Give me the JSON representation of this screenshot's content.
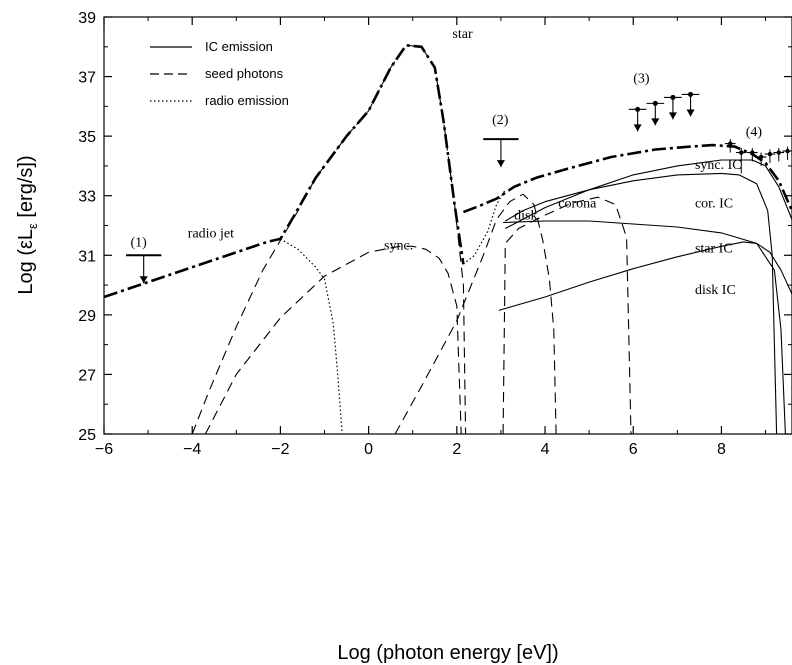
{
  "chart_data": {
    "type": "line",
    "title": "",
    "xlabel": "Log (photon energy [eV])",
    "ylabel": "Log (εL",
    "ylabel_sub": "ε",
    "ylabel_unit": " [erg/s])",
    "xlim": [
      -6,
      9.6
    ],
    "ylim": [
      25,
      39
    ],
    "x_ticks": [
      -6,
      -4,
      -2,
      0,
      2,
      4,
      6,
      8
    ],
    "y_ticks": [
      25,
      27,
      29,
      31,
      33,
      35,
      37,
      39
    ],
    "grid": false,
    "legend": {
      "placement": "top-left",
      "entries": [
        {
          "label": "IC emission",
          "style": "solid"
        },
        {
          "label": "seed photons",
          "style": "dashed"
        },
        {
          "label": "radio emission",
          "style": "dotted"
        }
      ]
    },
    "annotations": [
      {
        "text": "star",
        "x": 1.9,
        "y": 38.3
      },
      {
        "text": "radio jet",
        "x": -4.1,
        "y": 31.6
      },
      {
        "text": "sync.",
        "x": 0.35,
        "y": 31.2
      },
      {
        "text": "disk",
        "x": 3.3,
        "y": 32.2
      },
      {
        "text": "corona",
        "x": 4.3,
        "y": 32.6
      },
      {
        "text": "sync. IC",
        "x": 7.4,
        "y": 33.9
      },
      {
        "text": "cor. IC",
        "x": 7.4,
        "y": 32.6
      },
      {
        "text": "star IC",
        "x": 7.4,
        "y": 31.1
      },
      {
        "text": "disk IC",
        "x": 7.4,
        "y": 29.7
      },
      {
        "text": "(1)",
        "x": -5.4,
        "y": 31.3
      },
      {
        "text": "(2)",
        "x": 2.8,
        "y": 35.4
      },
      {
        "text": "(3)",
        "x": 6.0,
        "y": 36.8
      },
      {
        "text": "(4)",
        "x": 8.55,
        "y": 35.0
      }
    ],
    "series": [
      {
        "style": "dash-dot-thick",
        "x": [
          -6,
          -4,
          -2.3,
          -2.0,
          -1.7,
          -1.2,
          -0.5,
          0,
          0.5,
          0.85,
          1.2,
          1.5,
          1.7,
          1.95,
          2.15
        ],
        "y": [
          29.6,
          30.6,
          31.45,
          31.55,
          32.3,
          33.6,
          35.0,
          35.85,
          37.3,
          38.05,
          38.0,
          37.3,
          35.5,
          32.7,
          30.7
        ]
      },
      {
        "style": "dash-dot-thick",
        "x": [
          2.15,
          2.5,
          2.9,
          3.3,
          3.8,
          4.5,
          5.5,
          6.5,
          7.3,
          7.8,
          8.3,
          8.7,
          9.0,
          9.3,
          9.6
        ],
        "y": [
          32.45,
          32.65,
          32.9,
          33.3,
          33.6,
          33.9,
          34.3,
          34.55,
          34.65,
          34.7,
          34.65,
          34.4,
          34.1,
          33.5,
          32.5
        ]
      },
      {
        "style": "dashed",
        "x": [
          -4.0,
          -3.6,
          -3.0,
          -2.4,
          -2.0,
          -1.6,
          -1.2,
          -0.5,
          0,
          0.5,
          0.85,
          1.2,
          1.5,
          1.7,
          1.95,
          2.15,
          2.2
        ],
        "y": [
          25,
          26.5,
          28.6,
          30.5,
          31.5,
          32.5,
          33.6,
          35.0,
          35.85,
          37.3,
          38.05,
          38.0,
          37.3,
          35.5,
          32.7,
          30.0,
          25
        ]
      },
      {
        "style": "dashed",
        "x": [
          -3.7,
          -3.0,
          -2.0,
          -1.0,
          0,
          0.7,
          1.0,
          1.3,
          1.6,
          1.8,
          2.0,
          2.1
        ],
        "y": [
          25,
          27.0,
          28.9,
          30.3,
          31.1,
          31.3,
          31.3,
          31.2,
          30.9,
          30.4,
          29.3,
          25
        ]
      },
      {
        "style": "dashed",
        "x": [
          0.6,
          1.2,
          2.0,
          2.6,
          2.9,
          3.2,
          3.5,
          3.75,
          3.95,
          4.1,
          4.2,
          4.25
        ],
        "y": [
          25,
          26.6,
          28.8,
          31.0,
          32.2,
          32.8,
          33.05,
          32.7,
          31.5,
          30.2,
          28.5,
          25
        ]
      },
      {
        "style": "dashed",
        "x": [
          3.05,
          3.1,
          3.4,
          4.0,
          4.6,
          5.2,
          5.6,
          5.85,
          5.95
        ],
        "y": [
          25,
          31.4,
          31.9,
          32.35,
          32.75,
          32.95,
          32.7,
          31.6,
          25
        ]
      },
      {
        "style": "dotted",
        "x": [
          -2.0,
          -1.6,
          -1.2,
          -1.0,
          -0.8,
          -0.7,
          -0.6
        ],
        "y": [
          31.55,
          31.2,
          30.6,
          30.2,
          28.7,
          27.0,
          25
        ]
      },
      {
        "style": "dotted",
        "x": [
          2.15,
          2.4,
          2.7,
          2.9,
          3.1
        ],
        "y": [
          30.7,
          31.0,
          31.8,
          32.7,
          33.2
        ]
      },
      {
        "style": "solid",
        "x": [
          3.1,
          3.5,
          4.0,
          5.0,
          6.0,
          7.0,
          8.0,
          8.4,
          8.8,
          9.05,
          9.15,
          9.25
        ],
        "y": [
          32.15,
          32.5,
          32.8,
          33.2,
          33.5,
          33.7,
          33.75,
          33.7,
          33.4,
          32.5,
          31.0,
          25
        ]
      },
      {
        "style": "solid",
        "x": [
          3.1,
          4.0,
          5.0,
          6.0,
          7.0,
          8.0,
          8.7,
          9.0,
          9.3,
          9.6
        ],
        "y": [
          31.9,
          32.6,
          33.2,
          33.7,
          34.0,
          34.2,
          34.2,
          34.0,
          33.3,
          32.2
        ]
      },
      {
        "style": "solid",
        "x": [
          3.05,
          4.0,
          5.0,
          6.0,
          7.0,
          8.0,
          8.8,
          9.2,
          9.35,
          9.45
        ],
        "y": [
          32.1,
          32.15,
          32.15,
          32.05,
          31.95,
          31.75,
          31.4,
          30.5,
          28.5,
          25
        ]
      },
      {
        "style": "solid",
        "x": [
          2.95,
          4.0,
          5.0,
          6.0,
          7.0,
          8.0,
          8.5,
          8.8,
          9.1,
          9.35,
          9.6
        ],
        "y": [
          29.15,
          29.6,
          30.1,
          30.55,
          30.95,
          31.3,
          31.45,
          31.4,
          31.1,
          30.5,
          29.7
        ]
      }
    ],
    "upper_limits": [
      {
        "label": "(1)",
        "x0": -5.5,
        "x1": -4.7,
        "y": 31.0
      },
      {
        "label": "(2)",
        "x0": 2.6,
        "x1": 3.4,
        "y": 34.9
      }
    ],
    "data_points_3": {
      "x": [
        6.1,
        6.5,
        6.9,
        7.3
      ],
      "y": [
        35.9,
        36.1,
        36.3,
        36.4
      ],
      "xerr": 0.2,
      "y_low": 35.3
    },
    "data_points_4": {
      "x": [
        8.2,
        8.45,
        8.7,
        8.9,
        9.1,
        9.3,
        9.5
      ],
      "y": [
        34.75,
        34.45,
        34.45,
        34.3,
        34.4,
        34.45,
        34.5
      ],
      "xerr": 0.12,
      "yerr": 0.5
    }
  }
}
